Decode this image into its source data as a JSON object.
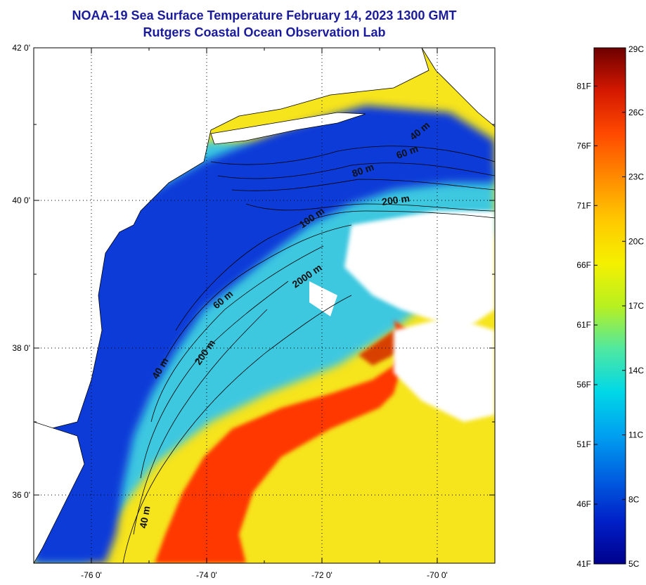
{
  "title": "NOAA-19 Sea Surface Temperature February 14, 2023 1300 GMT",
  "subtitle": "Rutgers Coastal Ocean Observation Lab",
  "lat_labels": [
    "42 0'",
    "40 0'",
    "38 0'",
    "36 0'"
  ],
  "lon_labels": [
    "-76 0'",
    "-74 0'",
    "-72 0'",
    "-70 0'"
  ],
  "contour_labels": [
    "40 m",
    "60 m",
    "80 m",
    "200 m",
    "100 m",
    "2000 m",
    "60 m",
    "40 m",
    "200 m",
    "40 m"
  ],
  "colorbar": {
    "celsius": [
      "29C",
      "26C",
      "23C",
      "20C",
      "17C",
      "14C",
      "11C",
      "8C",
      "5C"
    ],
    "fahrenheit": [
      "81F",
      "76F",
      "71F",
      "66F",
      "61F",
      "56F",
      "51F",
      "46F",
      "41F"
    ],
    "colors": [
      "#6e0000",
      "#d41800",
      "#ff4a00",
      "#ff8a00",
      "#ffc800",
      "#f5f000",
      "#b8f020",
      "#50e8a0",
      "#00d8e8",
      "#00a0f0",
      "#0060e0",
      "#0020c8",
      "#00008c"
    ]
  },
  "colors": {
    "title": "#1a1a9c",
    "land": "#ffffff",
    "shelf": "#0030d0",
    "warm": "#ff3a00",
    "mid": "#40c8e8",
    "yellow": "#f8e820"
  }
}
